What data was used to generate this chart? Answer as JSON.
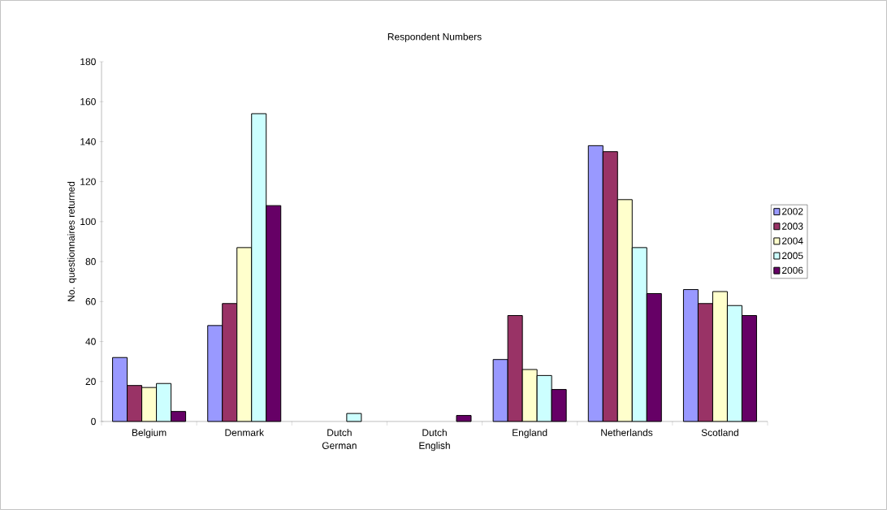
{
  "chart_data": {
    "type": "bar",
    "title": "Respondent Numbers",
    "ylabel": "No. questionnaires returned",
    "categories": [
      "Belgium",
      "Denmark",
      "Dutch German",
      "Dutch English",
      "England",
      "Netherlands",
      "Scotland"
    ],
    "series": [
      {
        "name": "2002",
        "color": "#9999ff",
        "values": [
          32,
          48,
          null,
          null,
          31,
          138,
          66
        ]
      },
      {
        "name": "2003",
        "color": "#993366",
        "values": [
          18,
          59,
          null,
          null,
          53,
          135,
          59
        ]
      },
      {
        "name": "2004",
        "color": "#ffffcc",
        "values": [
          17,
          87,
          null,
          null,
          26,
          111,
          65
        ]
      },
      {
        "name": "2005",
        "color": "#ccffff",
        "values": [
          19,
          154,
          4,
          null,
          23,
          87,
          58
        ]
      },
      {
        "name": "2006",
        "color": "#660066",
        "values": [
          5,
          108,
          null,
          3,
          16,
          64,
          53
        ]
      }
    ],
    "ylim": [
      0,
      180
    ],
    "yticks": [
      0,
      20,
      40,
      60,
      80,
      100,
      120,
      140,
      160,
      180
    ],
    "legend": "right",
    "grid": false
  }
}
